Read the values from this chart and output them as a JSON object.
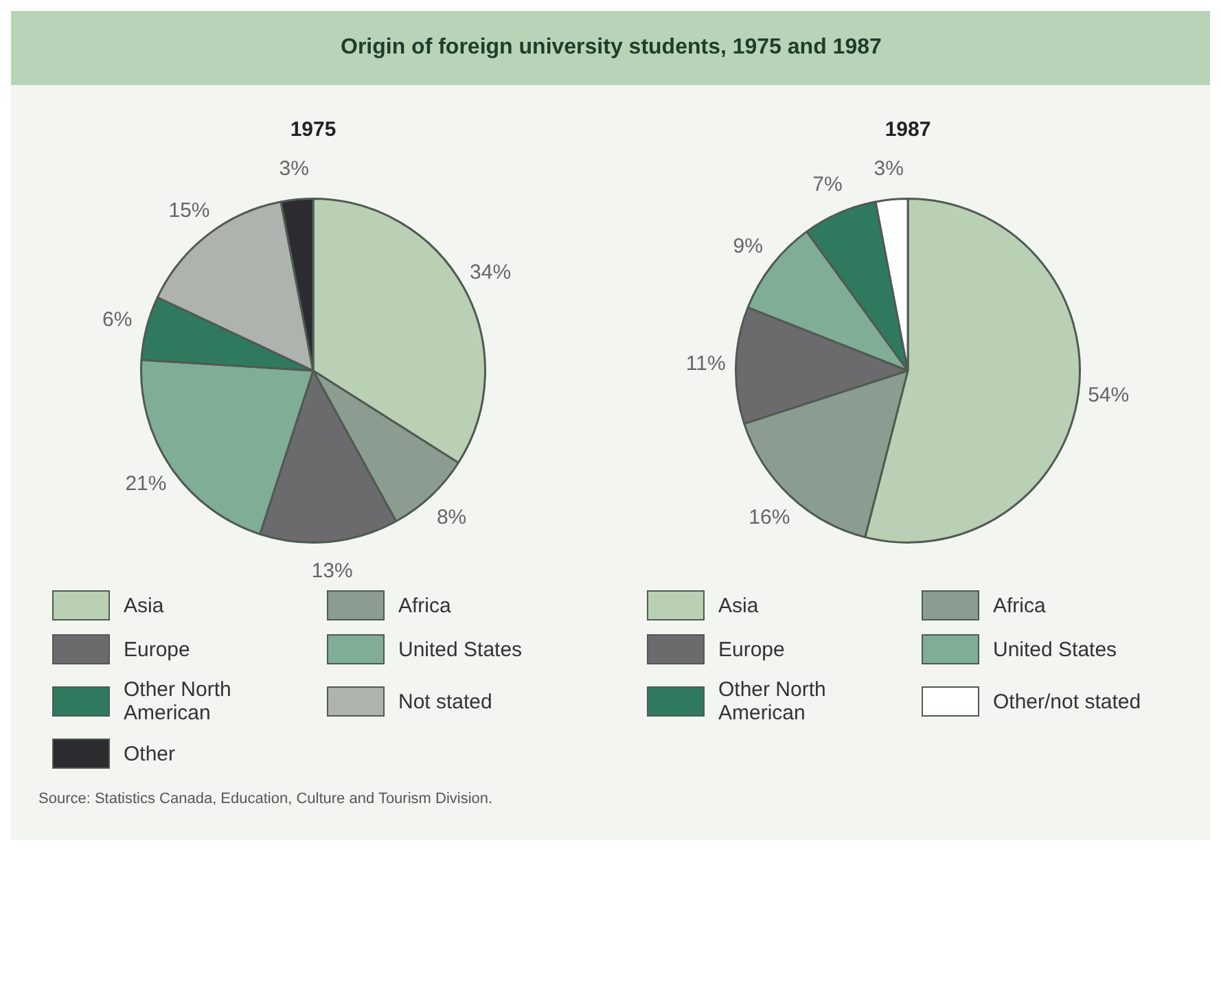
{
  "chart_data": [
    {
      "type": "pie",
      "title": "Origin of foreign university students, 1975 and 1987",
      "subtitle": "1975",
      "categories": [
        "Asia",
        "Africa",
        "Europe",
        "United States",
        "Other North American",
        "Not stated",
        "Other"
      ],
      "values": [
        34,
        8,
        13,
        21,
        6,
        15,
        3
      ],
      "colors": [
        "#b9d0b4",
        "#8b9d90",
        "#6b6b6d",
        "#80ad96",
        "#2f7a5e",
        "#aeb3ad",
        "#2b2b30"
      ],
      "value_labels": [
        "34%",
        "8%",
        "13%",
        "21%",
        "6%",
        "15%",
        "3%"
      ],
      "legend": "bottom"
    },
    {
      "type": "pie",
      "subtitle": "1987",
      "categories": [
        "Asia",
        "Africa",
        "Europe",
        "United States",
        "Other North American",
        "Other/not stated"
      ],
      "values": [
        54,
        16,
        11,
        9,
        7,
        3
      ],
      "colors": [
        "#b9d0b4",
        "#8b9d90",
        "#6b6b6d",
        "#80ad96",
        "#2f7a5e",
        "#ffffff"
      ],
      "value_labels": [
        "54%",
        "16%",
        "11%",
        "9%",
        "7%",
        "3%"
      ],
      "legend": "bottom",
      "annotations": [
        "Source: Statistics Canada, Education, Culture and Tourism Division."
      ]
    }
  ]
}
